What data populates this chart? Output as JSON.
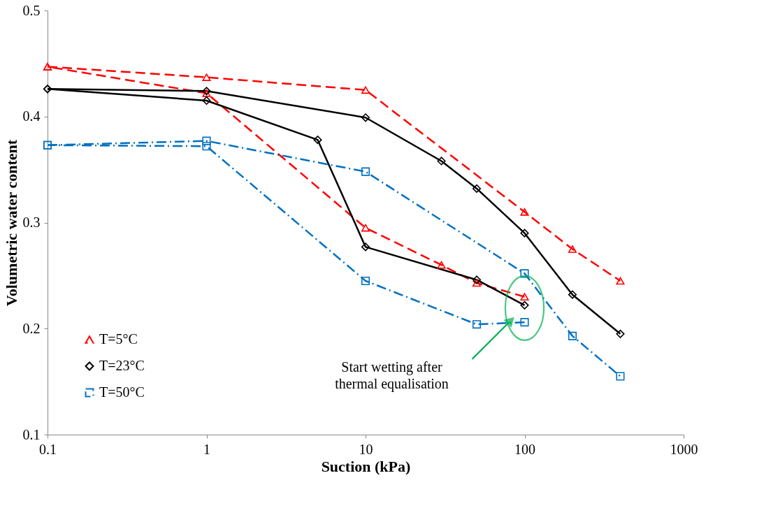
{
  "chart_data": {
    "type": "line",
    "xlabel": "Suction (kPa)",
    "ylabel": "Volumetric water content",
    "log": "x",
    "xlim": [
      0.1,
      1000
    ],
    "xticks": [
      0.1,
      1,
      10,
      100,
      1000
    ],
    "ylim": [
      0.1,
      0.5
    ],
    "yticks": [
      0.1,
      0.2,
      0.3,
      0.4,
      0.5
    ],
    "grid": false,
    "legend": "bottom left",
    "series": [
      {
        "name": "T=5°C",
        "color": "#ff0000",
        "line_style": "dashed",
        "marker": "triangle",
        "x": [
          0.1,
          1,
          10,
          100,
          200,
          400,
          null,
          100,
          50,
          30,
          10,
          1,
          0.1
        ],
        "values": [
          0.447,
          0.437,
          0.425,
          0.31,
          0.275,
          0.245,
          null,
          0.23,
          0.243,
          0.26,
          0.295,
          0.422,
          0.447
        ]
      },
      {
        "name": "T=23°C",
        "color": "#000000",
        "line_style": "solid",
        "marker": "diamond",
        "x": [
          0.1,
          1,
          10,
          30,
          50,
          100,
          200,
          400,
          null,
          100,
          50,
          10,
          5,
          1,
          0.1
        ],
        "values": [
          0.426,
          0.424,
          0.399,
          0.358,
          0.332,
          0.29,
          0.232,
          0.195,
          null,
          0.222,
          0.246,
          0.277,
          0.378,
          0.415,
          0.426
        ]
      },
      {
        "name": "T=50°C",
        "color": "#0070c0",
        "line_style": "dashdot",
        "marker": "square",
        "x": [
          0.1,
          1,
          10,
          100,
          200,
          400,
          null,
          100,
          50,
          10,
          1,
          0.1
        ],
        "values": [
          0.373,
          0.377,
          0.348,
          0.252,
          0.193,
          0.155,
          null,
          0.206,
          0.204,
          0.245,
          0.372,
          0.373
        ]
      }
    ],
    "annotations": [
      "Start wetting after\nthermal equalisation"
    ]
  }
}
